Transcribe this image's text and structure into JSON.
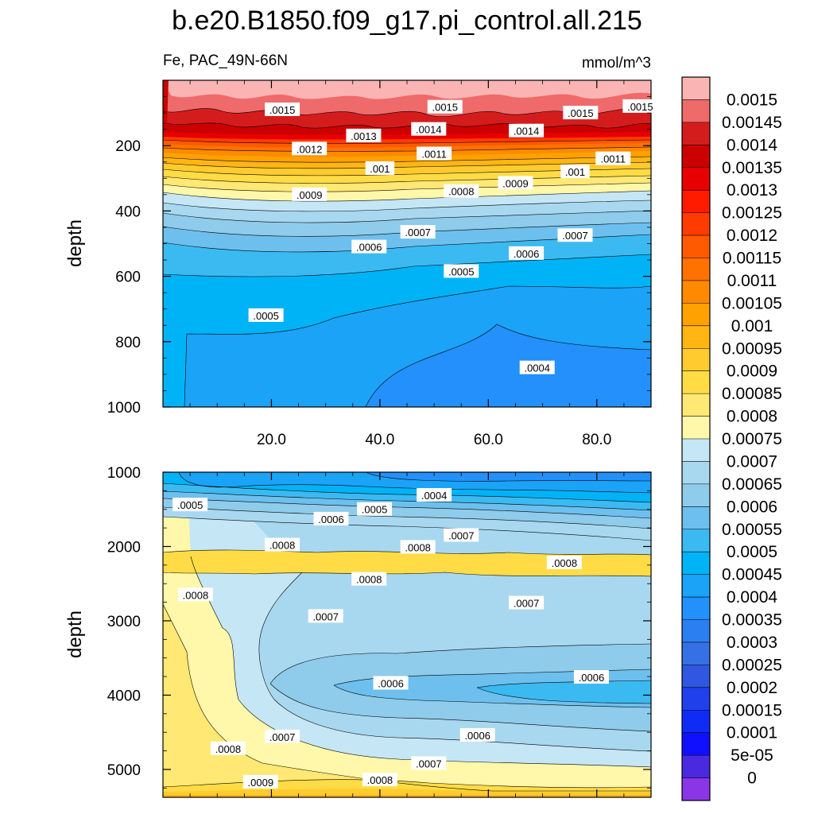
{
  "title": "b.e20.B1850.f09_g17.pi_control.all.215",
  "subtitle_left": "Fe, PAC_49N-66N",
  "subtitle_right": "mmol/m^3",
  "chart_data": [
    {
      "type": "heatmap",
      "panel": "upper",
      "ylabel": "depth",
      "ylim": [
        0,
        1000
      ],
      "y_inverted": true,
      "xlim": [
        0,
        90
      ],
      "xticks": [
        "20.0",
        "40.0",
        "60.0",
        "80.0"
      ],
      "yticks": [
        "200",
        "400",
        "600",
        "800",
        "1000"
      ],
      "contour_labels": [
        {
          "text": ".0015",
          "x": 22,
          "y": 90
        },
        {
          "text": ".0015",
          "x": 52,
          "y": 82
        },
        {
          "text": ".0015",
          "x": 77,
          "y": 100
        },
        {
          "text": ".0015",
          "x": 88,
          "y": 80
        },
        {
          "text": ".0014",
          "x": 49,
          "y": 150
        },
        {
          "text": ".0014",
          "x": 67,
          "y": 155
        },
        {
          "text": ".0013",
          "x": 37,
          "y": 170
        },
        {
          "text": ".0012",
          "x": 27,
          "y": 210
        },
        {
          "text": ".0011",
          "x": 50,
          "y": 225
        },
        {
          "text": ".0011",
          "x": 83,
          "y": 240
        },
        {
          "text": ".001",
          "x": 40,
          "y": 270
        },
        {
          "text": ".001",
          "x": 76,
          "y": 280
        },
        {
          "text": ".0009",
          "x": 27,
          "y": 350
        },
        {
          "text": ".0009",
          "x": 65,
          "y": 315
        },
        {
          "text": ".0008",
          "x": 55,
          "y": 340
        },
        {
          "text": ".0007",
          "x": 47,
          "y": 465
        },
        {
          "text": ".0007",
          "x": 76,
          "y": 475
        },
        {
          "text": ".0006",
          "x": 38,
          "y": 510
        },
        {
          "text": ".0006",
          "x": 67,
          "y": 530
        },
        {
          "text": ".0005",
          "x": 55,
          "y": 585
        },
        {
          "text": ".0005",
          "x": 19,
          "y": 720
        },
        {
          "text": ".0004",
          "x": 69,
          "y": 880
        }
      ]
    },
    {
      "type": "heatmap",
      "panel": "lower",
      "ylabel": "depth",
      "ylim": [
        1000,
        5375
      ],
      "y_inverted": true,
      "xlim": [
        0,
        90
      ],
      "yticks": [
        "1000",
        "2000",
        "3000",
        "4000",
        "5000"
      ],
      "contour_labels": [
        {
          "text": ".0005",
          "x": 5,
          "y": 1440
        },
        {
          "text": ".0004",
          "x": 50,
          "y": 1310
        },
        {
          "text": ".0005",
          "x": 39,
          "y": 1500
        },
        {
          "text": ".0006",
          "x": 31,
          "y": 1630
        },
        {
          "text": ".0007",
          "x": 55,
          "y": 1850
        },
        {
          "text": ".0008",
          "x": 22,
          "y": 1980
        },
        {
          "text": ".0008",
          "x": 47,
          "y": 2010
        },
        {
          "text": ".0008",
          "x": 74,
          "y": 2220
        },
        {
          "text": ".0008",
          "x": 38,
          "y": 2440
        },
        {
          "text": ".0008",
          "x": 6,
          "y": 2650
        },
        {
          "text": ".0007",
          "x": 67,
          "y": 2760
        },
        {
          "text": ".0007",
          "x": 30,
          "y": 2940
        },
        {
          "text": ".0006",
          "x": 42,
          "y": 3840
        },
        {
          "text": ".0006",
          "x": 79,
          "y": 3760
        },
        {
          "text": ".0007",
          "x": 22,
          "y": 4560
        },
        {
          "text": ".0006",
          "x": 58,
          "y": 4540
        },
        {
          "text": ".0008",
          "x": 12,
          "y": 4720
        },
        {
          "text": ".0007",
          "x": 49,
          "y": 4920
        },
        {
          "text": ".0009",
          "x": 18,
          "y": 5170
        },
        {
          "text": ".0008",
          "x": 40,
          "y": 5140
        }
      ]
    }
  ],
  "colorbar": {
    "labels": [
      "0.0015",
      "0.00145",
      "0.0014",
      "0.00135",
      "0.0013",
      "0.00125",
      "0.0012",
      "0.00115",
      "0.0011",
      "0.00105",
      "0.001",
      "0.00095",
      "0.0009",
      "0.00085",
      "0.0008",
      "0.00075",
      "0.0007",
      "0.00065",
      "0.0006",
      "0.00055",
      "0.0005",
      "0.00045",
      "0.0004",
      "0.00035",
      "0.0003",
      "0.00025",
      "0.0002",
      "0.00015",
      "0.0001",
      "5e-05",
      "0"
    ],
    "colors": [
      "#fbb4b4",
      "#ef6a6a",
      "#d51c1c",
      "#cc0000",
      "#e80000",
      "#ff1b00",
      "#ff3b00",
      "#ff5a00",
      "#ff7200",
      "#ff8a00",
      "#ffa100",
      "#ffb615",
      "#ffcb2e",
      "#ffdc45",
      "#ffe873",
      "#fff7aa",
      "#c5e6f5",
      "#a8d8ef",
      "#8fcbea",
      "#6dc0ee",
      "#3bbaf2",
      "#00b3f6",
      "#1aa3f7",
      "#2390fb",
      "#2b7ff1",
      "#3570e5",
      "#2f57e0",
      "#2040ec",
      "#0f2cf7",
      "#1010ff",
      "#4a2ae0",
      "#8a35e6"
    ]
  }
}
